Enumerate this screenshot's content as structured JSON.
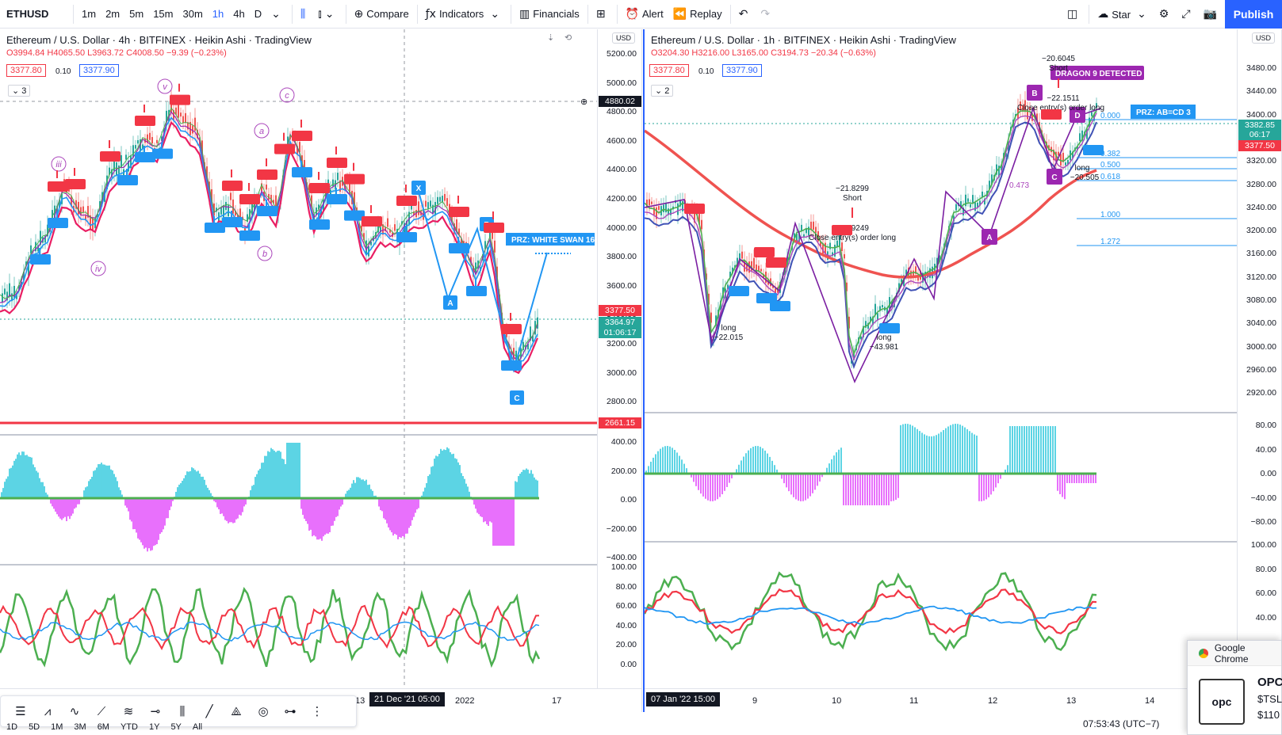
{
  "toolbar": {
    "symbol": "ETHUSD",
    "timeframes": [
      "1m",
      "2m",
      "5m",
      "15m",
      "30m",
      "1h",
      "4h",
      "D"
    ],
    "active_timeframe": "1h",
    "compare": "Compare",
    "indicators": "Indicators",
    "financials": "Financials",
    "alert": "Alert",
    "replay": "Replay",
    "layout_name": "Star",
    "publish": "Publish"
  },
  "left_chart": {
    "title": "Ethereum / U.S. Dollar · 4h · BITFINEX · Heikin Ashi · TradingView",
    "ohlc": {
      "o": "O3994.84",
      "h": "H4065.50",
      "l": "L3963.72",
      "c": "C4008.50",
      "chg": "−9.39 (−0.23%)"
    },
    "bid": "3377.80",
    "spread": "0.10",
    "ask": "3377.90",
    "collapse_count": "3",
    "currency": "USD",
    "price_axis": [
      "5200.00",
      "5000.00",
      "4800.00",
      "4600.00",
      "4400.00",
      "4200.00",
      "4000.00",
      "3800.00",
      "3600.00",
      "3400.00",
      "3200.00",
      "3000.00",
      "2800.00"
    ],
    "tags": {
      "crosshair": "4880.02",
      "red_line": "2661.15",
      "bid": "3377.50",
      "last": "3364.97",
      "countdown": "01:06:17"
    },
    "osc1_axis": [
      "400.00",
      "200.00",
      "0.00",
      "−200.00",
      "−400.00"
    ],
    "osc2_axis": [
      "100.00",
      "80.00",
      "60.00",
      "40.00",
      "20.00",
      "0.00"
    ],
    "time_labels": [
      "13",
      "2022",
      "17"
    ],
    "time_tag": "21 Dec '21   05:00",
    "prz_label": "PRZ: WHITE SWAN 16",
    "wave_labels": [
      "v",
      "c",
      "a",
      "iii",
      "b",
      "iv"
    ],
    "pattern_labels": [
      "X",
      "A",
      "B",
      "C"
    ]
  },
  "right_chart": {
    "title": "Ethereum / U.S. Dollar · 1h · BITFINEX · Heikin Ashi · TradingView",
    "ohlc": {
      "o": "O3204.30",
      "h": "H3216.00",
      "l": "L3165.00",
      "c": "C3194.73",
      "chg": "−20.34 (−0.63%)"
    },
    "bid": "3377.80",
    "spread": "0.10",
    "ask": "3377.90",
    "collapse_count": "2",
    "currency": "USD",
    "price_axis": [
      "3480.00",
      "3440.00",
      "3400.00",
      "3360.00",
      "3320.00",
      "3280.00",
      "3240.00",
      "3200.00",
      "3160.00",
      "3120.00",
      "3080.00",
      "3040.00",
      "3000.00",
      "2960.00",
      "2920.00"
    ],
    "tags": {
      "last": "3382.85",
      "countdown": "06:17",
      "bid": "3377.50"
    },
    "osc1_axis": [
      "80.00",
      "40.00",
      "0.00",
      "−40.00",
      "−80.00"
    ],
    "osc2_axis": [
      "100.00",
      "80.00",
      "60.00",
      "40.00"
    ],
    "time_labels": [
      "9",
      "10",
      "11",
      "12",
      "13",
      "14"
    ],
    "time_tag": "07 Jan '22   15:00",
    "prz_label": "PRZ: AB=CD 3",
    "dragon_label": "DRAGON 9 DETECTED",
    "fib_levels": [
      "0.000",
      "0.382",
      "0.500",
      "0.618",
      "1.000",
      "1.272"
    ],
    "fib_extra": "0.473",
    "annotations": {
      "short1_val": "−21.8299",
      "short1_txt": "Short",
      "close1_val": "−21.9249",
      "close1_txt": "Close entry(s) order long",
      "long1_txt": "long",
      "long1_val": "−22.015",
      "long2_txt": "long",
      "long2_val": "−43.981",
      "short2_val": "−20.6045",
      "short2_txt": "Short",
      "close2_val": "−22.1511",
      "close2_txt": "Close entry(s) order long",
      "long3_txt": "long",
      "long3_val": "−20.505"
    },
    "pattern_labels": [
      "A",
      "B",
      "C",
      "D"
    ]
  },
  "drawing_tools": [
    "line-tool",
    "pattern-tool",
    "wave-tool",
    "trend-tool",
    "fib-tool",
    "measure-tool",
    "range-tool",
    "ray-tool",
    "xabcd-tool",
    "cycle-tool",
    "forecast-tool",
    "projection-tool"
  ],
  "ranges": [
    "1D",
    "5D",
    "1M",
    "3M",
    "6M",
    "YTD",
    "1Y",
    "5Y",
    "All"
  ],
  "clock": "07:53:43 (UTC−7)",
  "notification": {
    "app": "Google Chrome",
    "title": "OPC",
    "line2": "$TSL",
    "line3": "$110"
  },
  "colors": {
    "accent": "#2962ff",
    "sell": "#f23645",
    "buy": "#2196f3",
    "pattern": "#9c27b0",
    "osc_green": "#4caf50",
    "osc_red": "#f23645",
    "osc_blue": "#2196f3",
    "cyan": "#26c6da",
    "magenta": "#e040fb"
  }
}
